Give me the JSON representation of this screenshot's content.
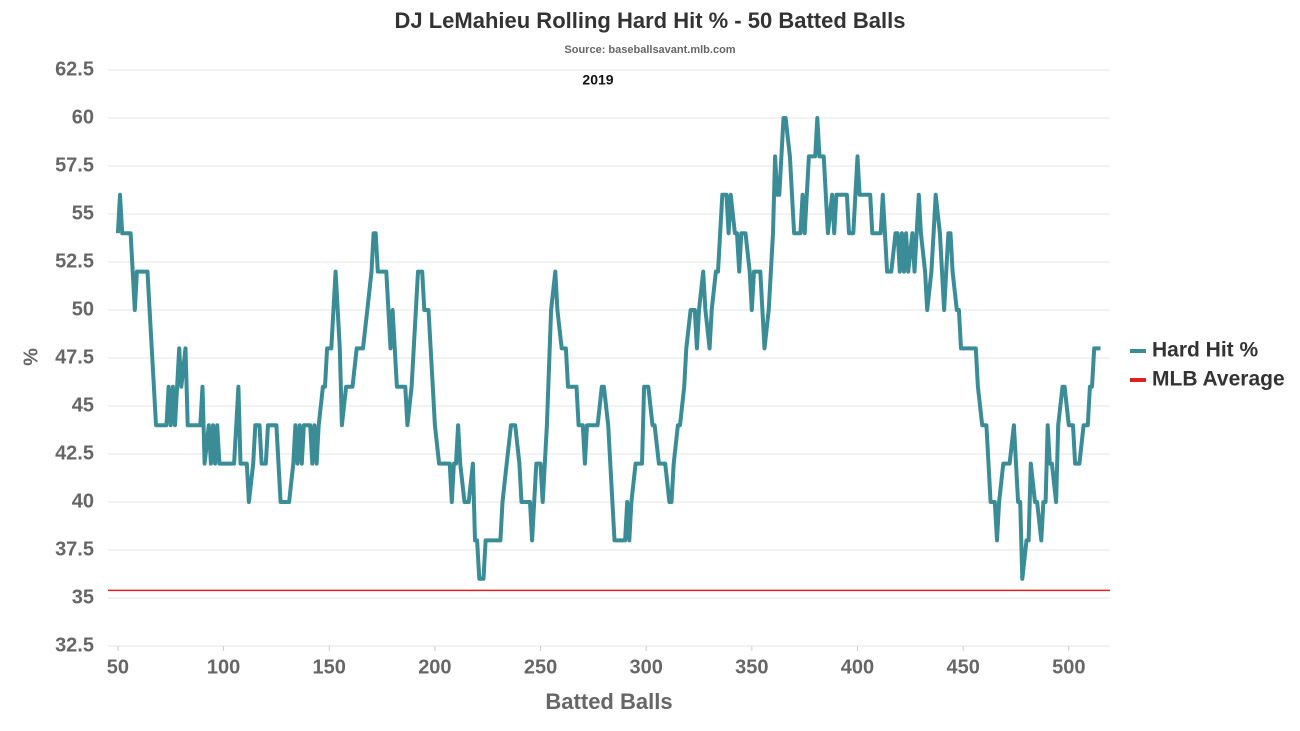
{
  "chart_data": {
    "type": "line",
    "title": "DJ LeMahieu Rolling Hard Hit % - 50 Batted Balls",
    "subtitle": "Source: baseballsavant.mlb.com",
    "annotation": "2019",
    "x_label": "Batted Balls",
    "y_label": "%",
    "xlim": [
      45.3,
      519.5
    ],
    "ylim": [
      32.5,
      62.5
    ],
    "xticks": [
      50,
      100,
      150,
      200,
      250,
      300,
      350,
      400,
      450,
      500
    ],
    "yticks": [
      32.5,
      35,
      37.5,
      40,
      42.5,
      45,
      47.5,
      50,
      52.5,
      55,
      57.5,
      60,
      62.5
    ],
    "grid": true,
    "legend": "right",
    "x": [
      50,
      51,
      52,
      56,
      58,
      59,
      64,
      65,
      67,
      68,
      73,
      74,
      75,
      76,
      77,
      78,
      79,
      80,
      82,
      83,
      89,
      90,
      91,
      93,
      94,
      95,
      96,
      97,
      98,
      105,
      107,
      108,
      111,
      112,
      114,
      115,
      117,
      118,
      120,
      121,
      125,
      127,
      131,
      133,
      134,
      135,
      136,
      137,
      138,
      141,
      142,
      143,
      144,
      145,
      147,
      148,
      149,
      151,
      153,
      155,
      156,
      158,
      161,
      163,
      166,
      168,
      170,
      171,
      172,
      173,
      177,
      179,
      180,
      182,
      186,
      187,
      189,
      192,
      194,
      195,
      197,
      199,
      200,
      202,
      207,
      208,
      209,
      210,
      211,
      212,
      214,
      216,
      218,
      219,
      220,
      221,
      223,
      224,
      231,
      232,
      234,
      236,
      238,
      240,
      241,
      245,
      246,
      248,
      250,
      251,
      253,
      255,
      257,
      258,
      260,
      262,
      263,
      267,
      268,
      270,
      271,
      272,
      277,
      279,
      280,
      282,
      284,
      285,
      290,
      291,
      292,
      293,
      295,
      298,
      299,
      301,
      303,
      304,
      306,
      309,
      311,
      312,
      313,
      315,
      316,
      318,
      319,
      321,
      323,
      324,
      325,
      327,
      328,
      330,
      331,
      333,
      334,
      336,
      338,
      339,
      340,
      342,
      343,
      344,
      345,
      347,
      349,
      350,
      351,
      354,
      355,
      356,
      358,
      360,
      361,
      362,
      363,
      365,
      366,
      368,
      369,
      370,
      373,
      374,
      375,
      377,
      380,
      381,
      382,
      384,
      385,
      386,
      388,
      389,
      390,
      395,
      396,
      398,
      399,
      400,
      401,
      406,
      407,
      411,
      412,
      414,
      416,
      418,
      419,
      420,
      421,
      422,
      423,
      424,
      426,
      427,
      429,
      430,
      432,
      433,
      435,
      436,
      437,
      439,
      440,
      441,
      442,
      443,
      444,
      445,
      447,
      448,
      449,
      456,
      457,
      459,
      461,
      463,
      465,
      466,
      467,
      469,
      472,
      474,
      475,
      476,
      477,
      478,
      480,
      481,
      482,
      484,
      485,
      487,
      488,
      489,
      490,
      491,
      492,
      494,
      495,
      497,
      498,
      500,
      502,
      503,
      505,
      507,
      509,
      510,
      511,
      512,
      515
    ],
    "series": [
      {
        "name": "Hard Hit %",
        "color": "#3a8d96",
        "values": [
          54,
          56,
          54,
          54,
          50,
          52,
          52,
          50,
          46,
          44,
          44,
          46,
          44,
          46,
          44,
          46,
          48,
          46,
          48,
          44,
          44,
          46,
          42,
          44,
          42,
          44,
          42,
          44,
          42,
          42,
          46,
          42,
          42,
          40,
          42,
          44,
          44,
          42,
          42,
          44,
          44,
          40,
          40,
          42,
          44,
          42,
          44,
          42,
          44,
          44,
          42,
          44,
          42,
          44,
          46,
          46,
          48,
          48,
          52,
          48,
          44,
          46,
          46,
          48,
          48,
          50,
          52,
          54,
          54,
          52,
          52,
          48,
          50,
          46,
          46,
          44,
          46,
          52,
          52,
          50,
          50,
          46,
          44,
          42,
          42,
          40,
          42,
          42,
          44,
          42,
          40,
          40,
          42,
          38,
          38,
          36,
          36,
          38,
          38,
          40,
          42,
          44,
          44,
          42,
          40,
          40,
          38,
          42,
          42,
          40,
          44,
          50,
          52,
          50,
          48,
          48,
          46,
          46,
          44,
          44,
          42,
          44,
          44,
          46,
          46,
          44,
          40,
          38,
          38,
          40,
          38,
          40,
          42,
          42,
          46,
          46,
          44,
          44,
          42,
          42,
          40,
          40,
          42,
          44,
          44,
          46,
          48,
          50,
          50,
          48,
          50,
          52,
          50,
          48,
          50,
          52,
          52,
          56,
          56,
          54,
          56,
          54,
          54,
          52,
          54,
          54,
          52,
          50,
          52,
          52,
          50,
          48,
          50,
          54,
          58,
          56,
          56,
          60,
          60,
          58,
          56,
          54,
          54,
          56,
          54,
          58,
          58,
          60,
          58,
          58,
          56,
          54,
          56,
          54,
          56,
          56,
          54,
          54,
          56,
          58,
          56,
          56,
          54,
          54,
          56,
          52,
          52,
          54,
          54,
          52,
          54,
          52,
          54,
          52,
          54,
          52,
          56,
          54,
          52,
          50,
          52,
          54,
          56,
          54,
          52,
          50,
          52,
          54,
          54,
          52,
          50,
          50,
          48,
          48,
          46,
          44,
          44,
          40,
          40,
          38,
          40,
          42,
          42,
          44,
          42,
          40,
          40,
          36,
          38,
          38,
          42,
          40,
          40,
          38,
          40,
          40,
          44,
          42,
          42,
          40,
          44,
          46,
          46,
          44,
          44,
          42,
          42,
          44,
          44,
          46,
          46,
          48,
          48
        ]
      }
    ],
    "reference_line": {
      "name": "MLB Average",
      "color": "#e02020",
      "value": 35.4
    }
  }
}
